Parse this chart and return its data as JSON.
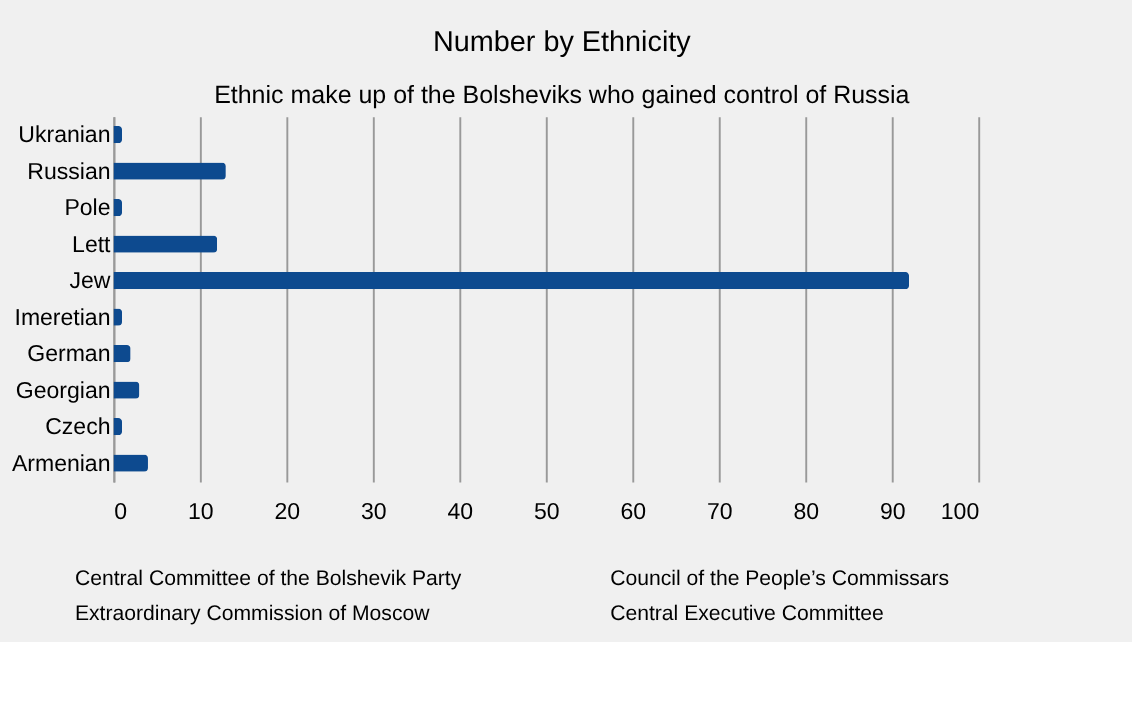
{
  "chart_data": {
    "type": "bar",
    "orientation": "horizontal",
    "title": "Number by Ethnicity",
    "subtitle": "Ethnic make up of the Bolsheviks who gained control of Russia",
    "categories": [
      "Ukranian",
      "Russian",
      "Pole",
      "Lett",
      "Jew",
      "Imeretian",
      "German",
      "Georgian",
      "Czech",
      "Armenian"
    ],
    "values": [
      1,
      13,
      1,
      12,
      92,
      1,
      2,
      3,
      1,
      4
    ],
    "color": "#0d4a8f",
    "xlim": [
      0,
      100
    ],
    "xticks": [
      0,
      10,
      20,
      30,
      40,
      50,
      60,
      70,
      80,
      90,
      100
    ],
    "grid": "x",
    "annotations": [
      "Central Committee of the Bolshevik Party",
      "Extraordinary Commission of Moscow",
      "Council of the People’s Commissars",
      "Central Executive Committee"
    ]
  }
}
